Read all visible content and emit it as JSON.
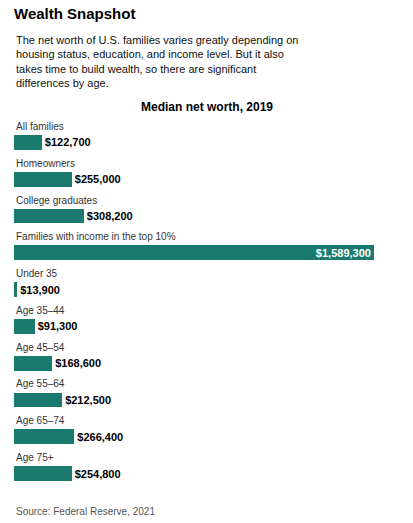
{
  "chart_data": {
    "type": "bar",
    "orientation": "horizontal",
    "title": "Wealth Snapshot",
    "subtitle": "The net worth of U.S. families varies greatly depending on\nhousing status, education, and income level. But it also\ntakes time to build wealth, so there are significant\ndifferences by age.",
    "annotations": [
      "Median net worth, 2019",
      "Source: Federal Reserve, 2021"
    ],
    "categories": [
      "All families",
      "Homeowners",
      "College graduates",
      "Families with income in the top 10%",
      "Under 35",
      "Age 35–44",
      "Age 45–54",
      "Age 55–64",
      "Age 65–74",
      "Age 75+"
    ],
    "values": [
      122700,
      255000,
      308200,
      1589300,
      13900,
      91300,
      168600,
      212500,
      266400,
      254800
    ],
    "value_labels": [
      "$122,700",
      "$255,000",
      "$308,200",
      "$1,589,300",
      "$13,900",
      "$91,300",
      "$168,600",
      "$212,500",
      "$266,400",
      "$254,800"
    ],
    "data_labels": true,
    "color": "#1a7a6e",
    "xlim": [
      0,
      1700000
    ],
    "tick_labels": false,
    "grid": false
  }
}
